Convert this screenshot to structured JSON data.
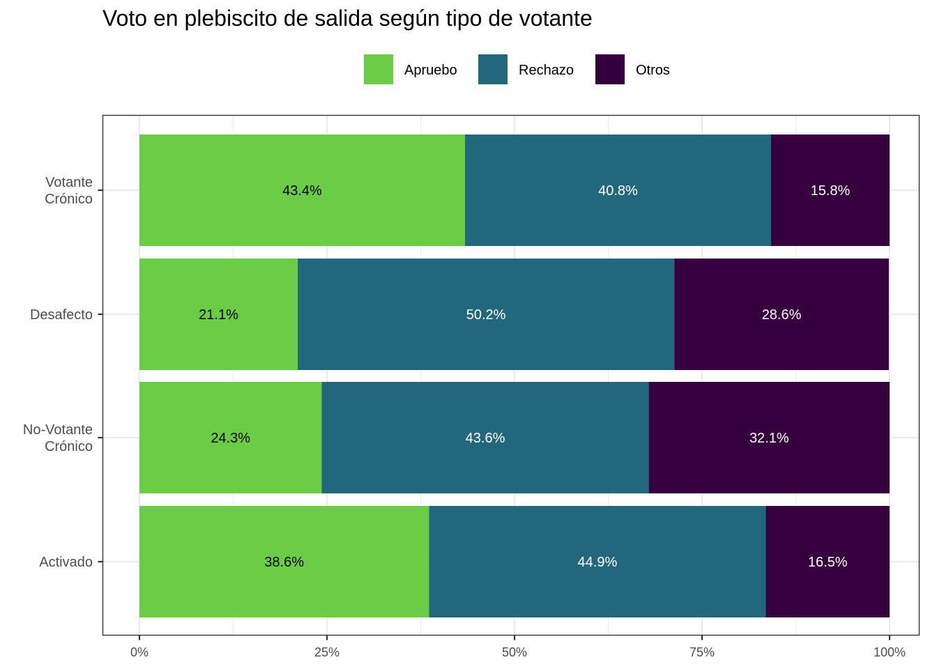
{
  "chart_data": {
    "type": "bar",
    "orientation": "horizontal",
    "stacked": "percent",
    "title": "Voto en plebiscito de salida según tipo de votante",
    "categories": [
      "Votante\nCrónico",
      "Desafecto",
      "No-Votante\nCrónico",
      "Activado"
    ],
    "series": [
      {
        "name": "Apruebo",
        "color": "#6ACD45",
        "label_color": "#000000",
        "values": [
          43.4,
          21.1,
          24.3,
          38.6
        ],
        "labels": [
          "43.4%",
          "21.1%",
          "24.3%",
          "38.6%"
        ]
      },
      {
        "name": "Rechazo",
        "color": "#23677D",
        "label_color": "#ffffff",
        "values": [
          40.8,
          50.2,
          43.6,
          44.9
        ],
        "labels": [
          "40.8%",
          "50.2%",
          "43.6%",
          "44.9%"
        ]
      },
      {
        "name": "Otros",
        "color": "#36003F",
        "label_color": "#ffffff",
        "values": [
          15.8,
          28.6,
          32.1,
          16.5
        ],
        "labels": [
          "15.8%",
          "28.6%",
          "32.1%",
          "16.5%"
        ]
      }
    ],
    "x_ticks": [
      0,
      25,
      50,
      75,
      100
    ],
    "x_tick_labels": [
      "0%",
      "25%",
      "50%",
      "75%",
      "100%"
    ],
    "xlim": [
      0,
      100
    ],
    "xlabel": "",
    "ylabel": "",
    "legend_position": "top",
    "grid": true
  }
}
